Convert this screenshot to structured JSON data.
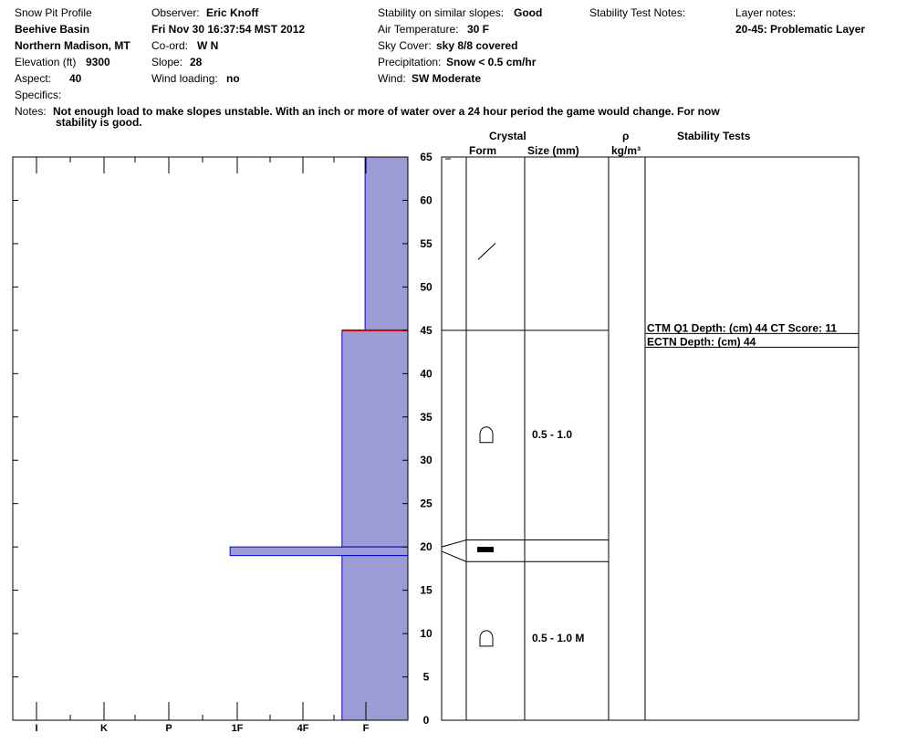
{
  "header": {
    "title": "Snow Pit Profile",
    "location": "Beehive Basin",
    "region": "Northern Madison, MT",
    "elevation_label": "Elevation (ft)",
    "elevation_value": "9300",
    "aspect_label": "Aspect:",
    "aspect_value": "40",
    "specifics_label": "Specifics:",
    "observer_label": "Observer:",
    "observer_value": "Eric Knoff",
    "datetime": "Fri Nov 30 16:37:54 MST 2012",
    "coord_label": "Co-ord:",
    "coord_value": "W  N",
    "slope_label": "Slope:",
    "slope_value": "28",
    "wind_loading_label": "Wind loading:",
    "wind_loading_value": "no",
    "stability_label": "Stability on similar slopes:",
    "stability_value": "Good",
    "air_temp_label": "Air Temperature:",
    "air_temp_value": "30 F",
    "sky_label": "Sky Cover:",
    "sky_value": "sky 8/8 covered",
    "precip_label": "Precipitation:",
    "precip_value": "Snow < 0.5 cm/hr",
    "wind_label": "Wind:",
    "wind_value": "SW Moderate",
    "stability_notes_label": "Stability Test Notes:",
    "layer_notes_label": "Layer notes:",
    "layer_notes_value": "20-45: Problematic Layer",
    "notes_label": "Notes:",
    "notes_line1": "Not enough load to make slopes unstable.  With an inch or more of water over a 24 hour period the game would change.  For now",
    "notes_line2": "stability is good."
  },
  "columns": {
    "crystal": "Crystal",
    "form": "Form",
    "size": "Size (mm)",
    "rho": "ρ",
    "density_unit": "kg/m³",
    "stability_tests": "Stability Tests"
  },
  "colors": {
    "hardness_fill": "#9b9bd6",
    "hardness_edge": "#0000cc",
    "weak_layer": "#cc0000"
  },
  "chart_data": {
    "type": "bar",
    "title": "",
    "hardness_categories": [
      "I",
      "K",
      "P",
      "1F",
      "4F",
      "F"
    ],
    "depth_ticks": [
      0,
      5,
      10,
      15,
      20,
      25,
      30,
      35,
      40,
      45,
      50,
      55,
      60,
      65
    ],
    "ylim": [
      0,
      65
    ],
    "hardness_scale_max": 6,
    "layers": [
      {
        "bottom": 45,
        "top": 65,
        "hardness": "F",
        "hardness_value": 0.65
      },
      {
        "bottom": 20,
        "top": 45,
        "hardness": "F",
        "hardness_value": 1.0
      },
      {
        "bottom": 19,
        "top": 20,
        "hardness": "1F",
        "hardness_value": 2.7
      },
      {
        "bottom": 0,
        "top": 19,
        "hardness": "F",
        "hardness_value": 1.0
      }
    ],
    "weak_layer_depth": 45,
    "crystal_layers": [
      {
        "depth": 54,
        "form": "precipitation-particles",
        "size": ""
      },
      {
        "depth": 33,
        "form": "rounded-grains",
        "size": "0.5 -   1.0"
      },
      {
        "depth": 19.7,
        "form": "ice-crust",
        "size": ""
      },
      {
        "depth": 9.5,
        "form": "rounded-grains",
        "size": "0.5 -   1.0 M"
      }
    ],
    "layer_boundaries": [
      45,
      20.8,
      18.3
    ],
    "stability_tests": [
      {
        "depth": 44,
        "text": "CTM Q1 Depth: (cm) 44 CT Score: 11"
      },
      {
        "depth": 44,
        "text": "ECTN  Depth: (cm) 44"
      }
    ]
  }
}
